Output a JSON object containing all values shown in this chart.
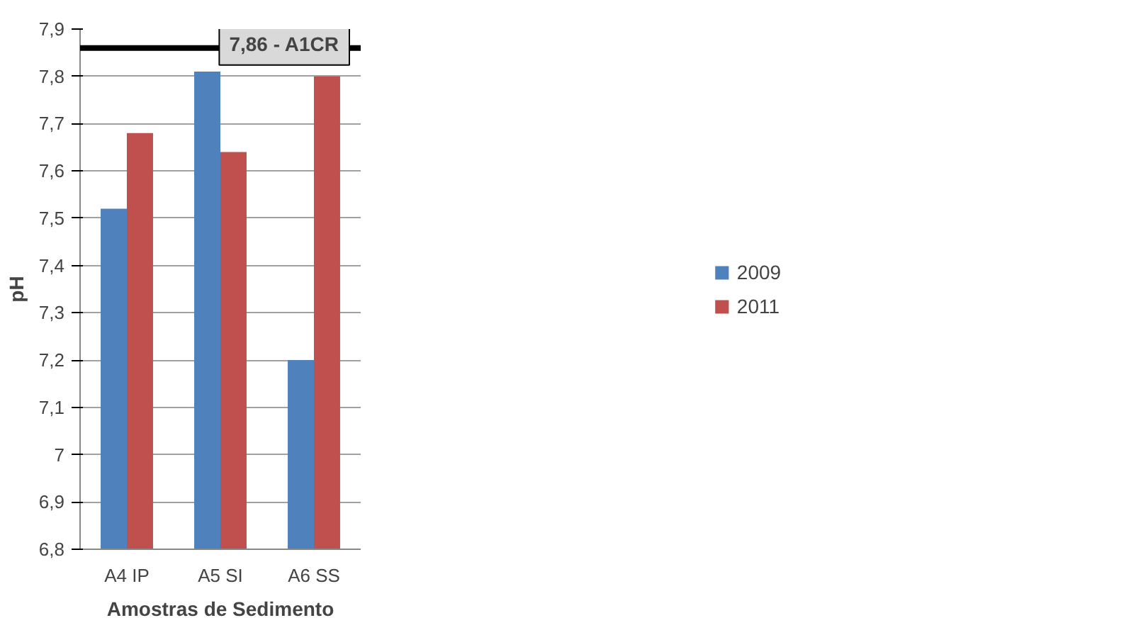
{
  "chart_data": {
    "type": "bar",
    "xlabel": "Amostras de Sedimento",
    "ylabel": "pH",
    "categories": [
      "A4 IP",
      "A5 SI",
      "A6 SS"
    ],
    "series": [
      {
        "name": "2009",
        "color": "#4f81bd",
        "values": [
          7.52,
          7.81,
          7.2
        ]
      },
      {
        "name": "2011",
        "color": "#c0504d",
        "values": [
          7.68,
          7.64,
          7.8
        ]
      }
    ],
    "ylim": [
      6.8,
      7.9
    ],
    "yticks": [
      {
        "value": 6.8,
        "label": "6,8"
      },
      {
        "value": 6.9,
        "label": "6,9"
      },
      {
        "value": 7.0,
        "label": "7"
      },
      {
        "value": 7.1,
        "label": "7,1"
      },
      {
        "value": 7.2,
        "label": "7,2"
      },
      {
        "value": 7.3,
        "label": "7,3"
      },
      {
        "value": 7.4,
        "label": "7,4"
      },
      {
        "value": 7.5,
        "label": "7,5"
      },
      {
        "value": 7.6,
        "label": "7,6"
      },
      {
        "value": 7.7,
        "label": "7,7"
      },
      {
        "value": 7.8,
        "label": "7,8"
      },
      {
        "value": 7.9,
        "label": "7,9"
      }
    ],
    "ref_lines": [
      {
        "axis": "y",
        "value": 7.86,
        "label": "7,86 - A1CR",
        "color": "#000000"
      }
    ],
    "grid": "y",
    "legend": "right"
  }
}
